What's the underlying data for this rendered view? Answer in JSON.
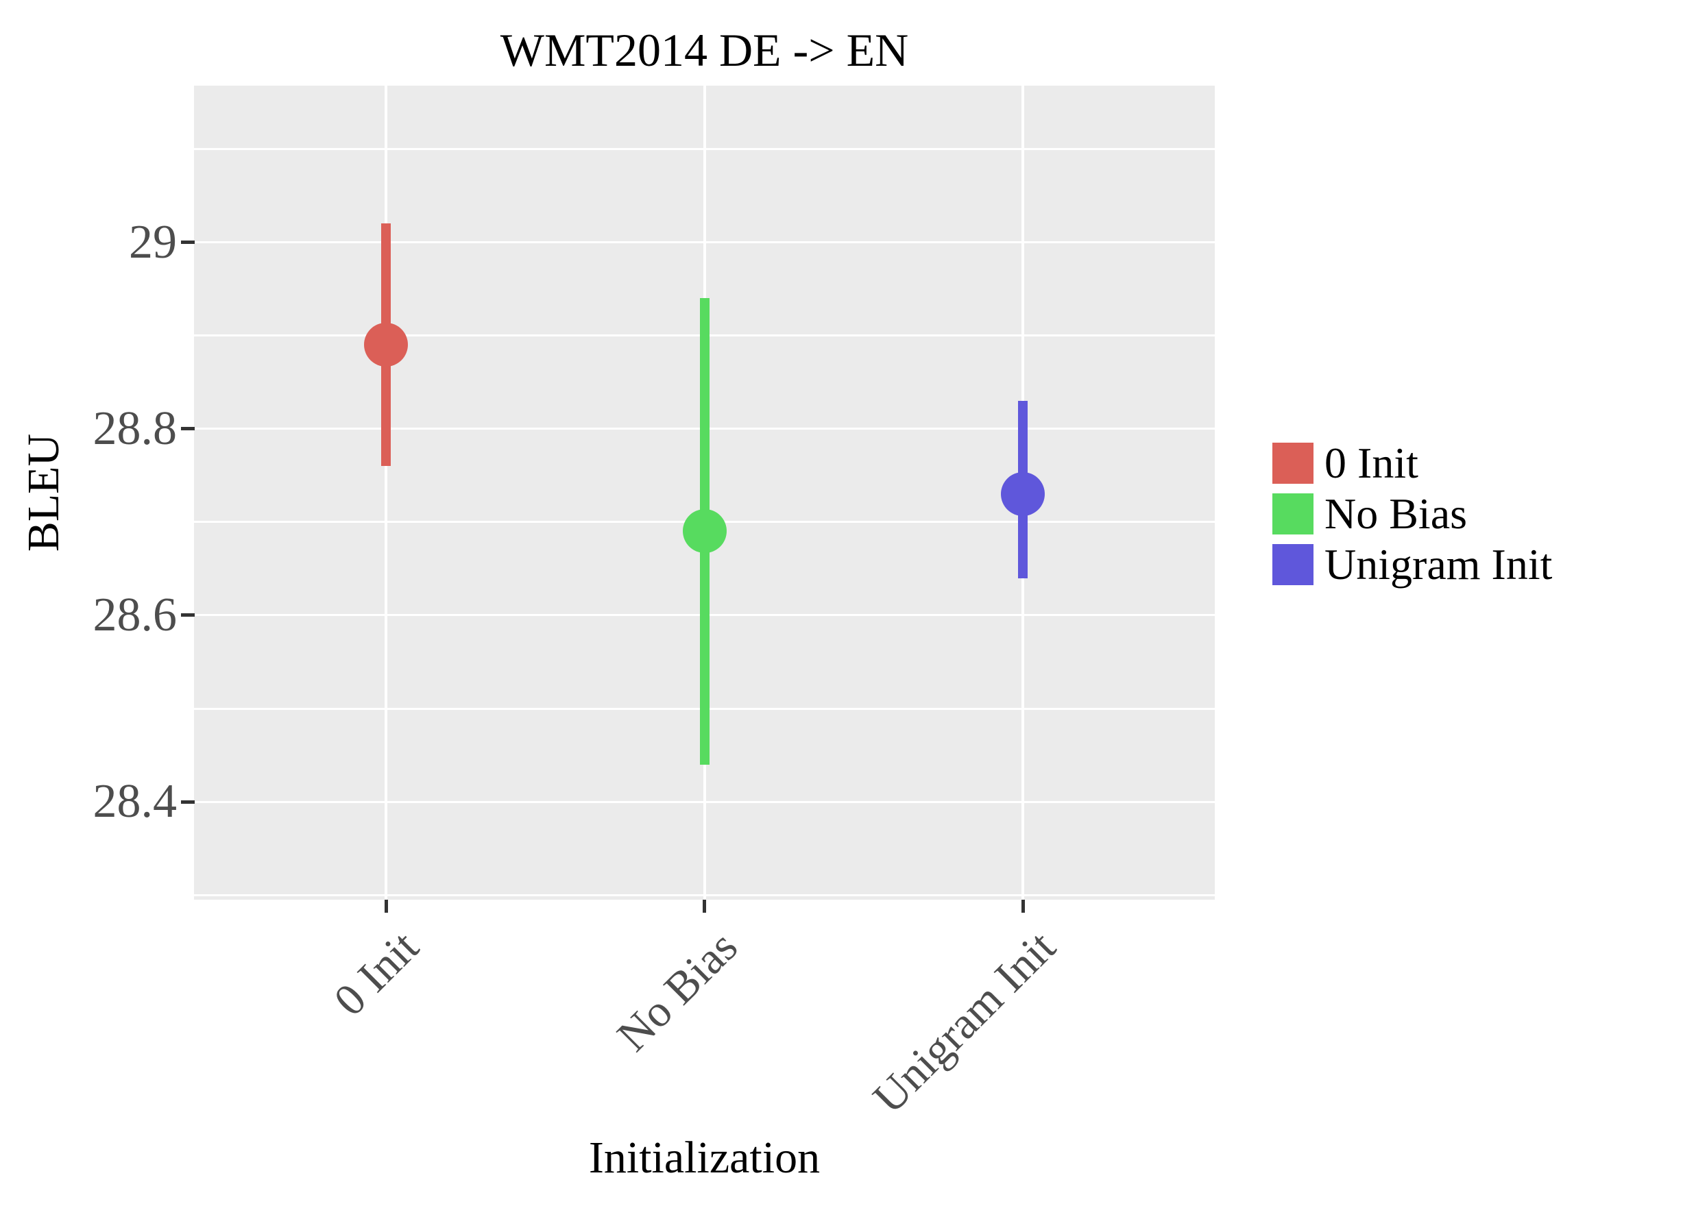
{
  "title": "WMT2014 DE -> EN",
  "axes": {
    "x_label": "Initialization",
    "y_label": "BLEU",
    "y_major_ticks": [
      {
        "value": 29.0,
        "label": "29"
      },
      {
        "value": 28.8,
        "label": "28.8"
      },
      {
        "value": 28.6,
        "label": "28.6"
      },
      {
        "value": 28.4,
        "label": "28.4"
      }
    ],
    "y_minor_grid": [
      29.1,
      28.9,
      28.7,
      28.5,
      28.3
    ],
    "ylim": [
      28.295,
      29.168
    ]
  },
  "chart_data": {
    "type": "scatter",
    "subtype": "point-estimates-with-error-bars",
    "title": "WMT2014 DE -> EN",
    "xlabel": "Initialization",
    "ylabel": "BLEU",
    "categories": [
      "0 Init",
      "No Bias",
      "Unigram Init"
    ],
    "series": [
      {
        "name": "0 Init",
        "mean": 28.89,
        "ci_low": 28.76,
        "ci_high": 29.02,
        "color": "#db5f57"
      },
      {
        "name": "No Bias",
        "mean": 28.69,
        "ci_low": 28.44,
        "ci_high": 28.94,
        "color": "#57db5f"
      },
      {
        "name": "Unigram Init",
        "mean": 28.73,
        "ci_low": 28.64,
        "ci_high": 28.83,
        "color": "#5f57db"
      }
    ],
    "ylim": [
      28.295,
      29.168
    ],
    "y_tick_labels": [
      "29",
      "28.8",
      "28.6",
      "28.4"
    ],
    "grid": true,
    "legend_position": "right"
  },
  "legend": {
    "entries": [
      {
        "label": "0 Init",
        "color": "#db5f57"
      },
      {
        "label": "No Bias",
        "color": "#57db5f"
      },
      {
        "label": "Unigram Init",
        "color": "#5f57db"
      }
    ]
  },
  "style": {
    "plot_bg": "#ebebeb",
    "grid_color": "#ffffff",
    "tick_label_color": "#4d4d4d",
    "tick_mark_color": "#333333"
  }
}
